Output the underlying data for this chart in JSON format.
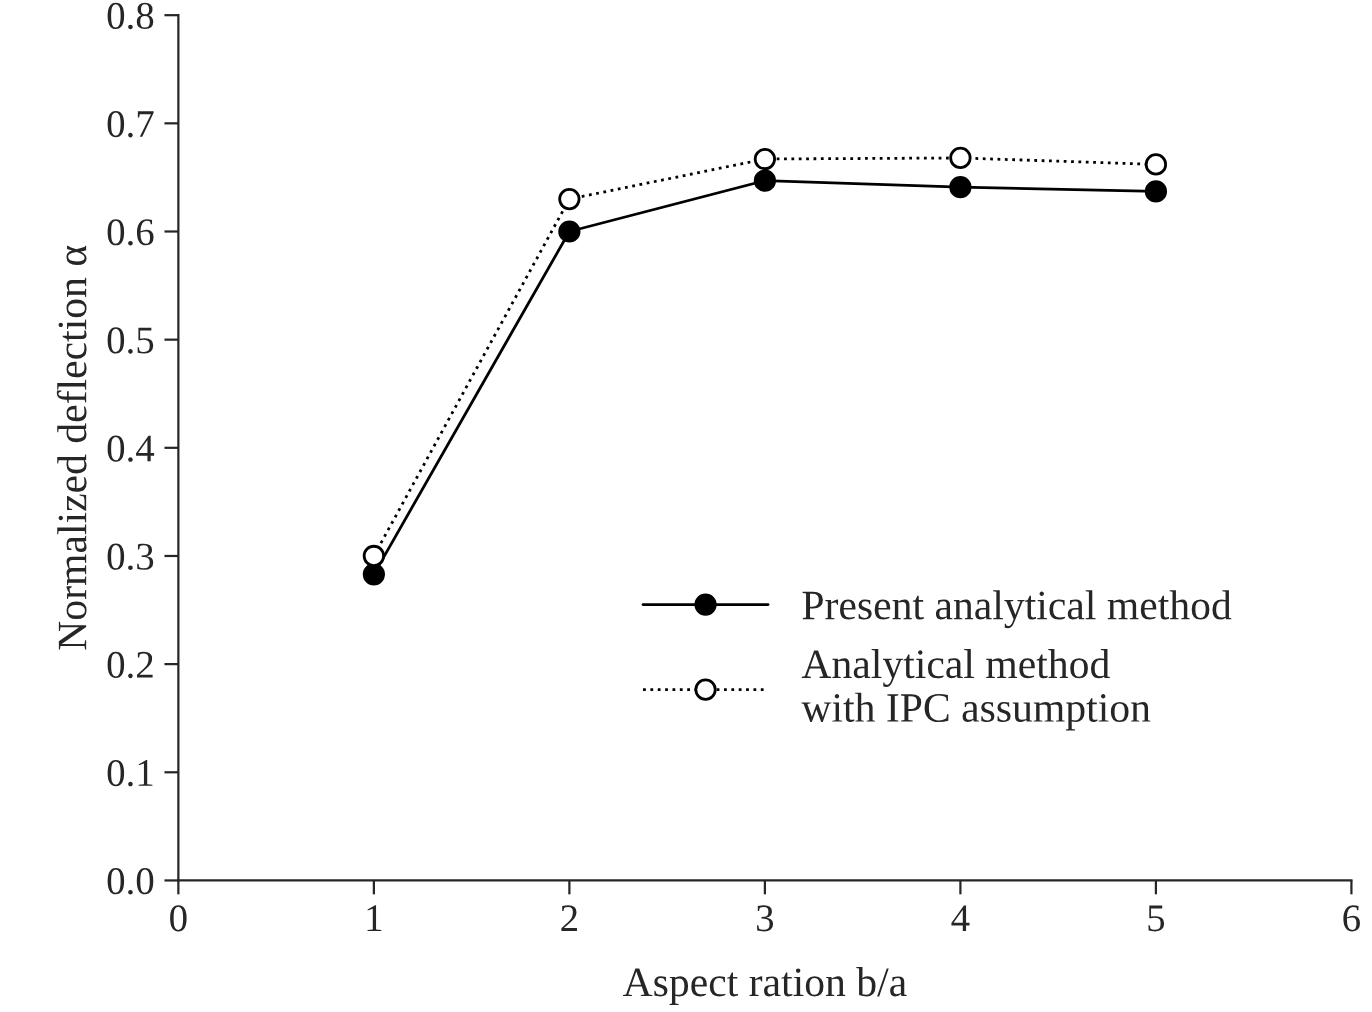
{
  "chart_data": {
    "type": "line",
    "xlabel": "Aspect ration b/a",
    "ylabel": "Normalized deflection α",
    "x": [
      1,
      2,
      3,
      4,
      5
    ],
    "series": [
      {
        "name": "Present analytical method",
        "color": "#000000",
        "values": [
          0.283,
          0.6,
          0.647,
          0.641,
          0.637
        ],
        "line_style": "solid",
        "marker": "circle"
      },
      {
        "name": "Analytical method\nwith IPC assumption",
        "color": "#000000",
        "values": [
          0.3,
          0.63,
          0.667,
          0.668,
          0.662
        ],
        "line_style": "dotted",
        "marker": "circle"
      }
    ],
    "xlim": [
      0,
      6
    ],
    "xticks": [
      0,
      1,
      2,
      3,
      4,
      5,
      6
    ],
    "ylim": [
      0,
      0.8
    ],
    "yticks": [
      {
        "value": 0,
        "label": "0.0"
      },
      0.1,
      0.2,
      0.3,
      0.4,
      0.5,
      0.6,
      0.7,
      0.8
    ],
    "grid": false,
    "legend": "bottom right"
  }
}
